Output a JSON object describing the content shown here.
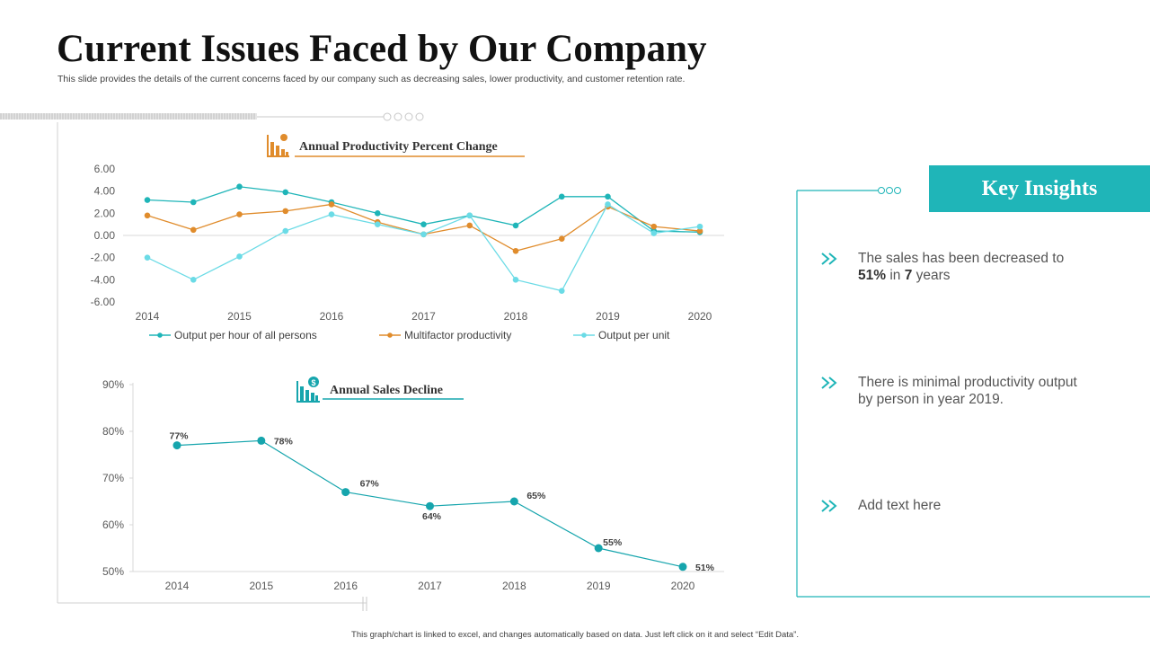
{
  "slide": {
    "title": "Current Issues Faced by Our Company",
    "subtitle": "This slide provides the details of the current concerns faced by our company such as decreasing sales, lower productivity, and customer retention rate.",
    "footer": "This graph/chart is linked to excel, and changes automatically based on data. Just left click on it and select “Edit Data”."
  },
  "colors": {
    "teal": "#1fb5b8",
    "orange": "#e08c2c",
    "light_teal": "#6bdbe6",
    "dark_teal": "#16a5ad"
  },
  "chart_data": [
    {
      "type": "line",
      "title": "Annual Productivity Percent Change",
      "title_icon": "declining-bar-chart-icon",
      "x": [
        2014,
        2014.5,
        2015,
        2015.5,
        2016,
        2016.5,
        2017,
        2017.5,
        2018,
        2018.5,
        2019,
        2019.5,
        2020
      ],
      "x_ticks": [
        "2014",
        "2015",
        "2016",
        "2017",
        "2018",
        "2019",
        "2020"
      ],
      "y_ticks": [
        "6.00",
        "4.00",
        "2.00",
        "0.00",
        "-2.00",
        "-4.00",
        "-6.00"
      ],
      "ylim": [
        -6,
        6
      ],
      "legend_position": "bottom",
      "series": [
        {
          "name": "Output per hour of all persons",
          "color": "#1fb5b8",
          "values": [
            3.2,
            3.0,
            4.4,
            3.9,
            3.0,
            2.0,
            1.0,
            1.8,
            0.9,
            3.5,
            3.5,
            0.4,
            0.3
          ]
        },
        {
          "name": "Multifactor productivity",
          "color": "#e08c2c",
          "values": [
            1.8,
            0.5,
            1.9,
            2.2,
            2.8,
            1.2,
            0.1,
            0.9,
            -1.4,
            -0.3,
            2.6,
            0.8,
            0.4
          ]
        },
        {
          "name": "Output per unit",
          "color": "#6bdbe6",
          "values": [
            -2.0,
            -4.0,
            -1.9,
            0.4,
            1.9,
            1.0,
            0.1,
            1.8,
            -4.0,
            -5.0,
            2.8,
            0.2,
            0.8
          ]
        }
      ]
    },
    {
      "type": "line",
      "title": "Annual Sales Decline",
      "title_icon": "dollar-bar-chart-icon",
      "categories": [
        "2014",
        "2015",
        "2016",
        "2017",
        "2018",
        "2019",
        "2020"
      ],
      "values": [
        77,
        78,
        67,
        64,
        65,
        55,
        51
      ],
      "data_labels": [
        "77%",
        "78%",
        "67%",
        "64%",
        "65%",
        "55%",
        "51%"
      ],
      "y_ticks": [
        "90%",
        "80%",
        "70%",
        "60%",
        "50%"
      ],
      "ylim": [
        50,
        90
      ],
      "color": "#16a5ad"
    }
  ],
  "insights": {
    "header": "Key Insights",
    "items": [
      {
        "pre": "The sales has been decreased to",
        "b1": "51%",
        "mid": " in ",
        "b2": "7",
        "post": " years"
      },
      {
        "text": "There is minimal productivity  output by person in year 2019."
      },
      {
        "text": "Add text here"
      }
    ]
  }
}
